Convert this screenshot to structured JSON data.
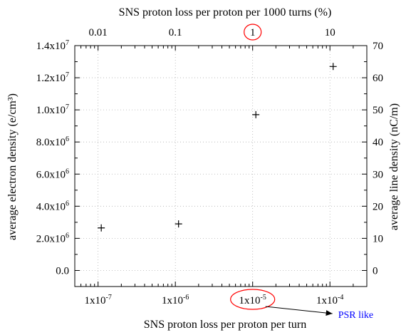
{
  "chart_data": {
    "type": "scatter",
    "title": "",
    "xlabel": "SNS proton loss per proton per turn",
    "xlabel_top": "SNS proton loss per proton per 1000 turns (%)",
    "ylabel_left": "average electron density  (e/cm³)",
    "ylabel_right": "average  line density (nC/m)",
    "x_scale": "log",
    "xlim": [
      5e-08,
      0.0003
    ],
    "ylim": [
      -1000000,
      14000000
    ],
    "ylim_right": [
      -5,
      70
    ],
    "grid": true,
    "x_ticks": [
      {
        "value": 1e-07,
        "mantissa": "1x10",
        "exponent": "-7"
      },
      {
        "value": 1e-06,
        "mantissa": "1x10",
        "exponent": "-6"
      },
      {
        "value": 1e-05,
        "mantissa": "1x10",
        "exponent": "-5"
      },
      {
        "value": 0.0001,
        "mantissa": "1x10",
        "exponent": "-4"
      }
    ],
    "x_ticks_top": [
      {
        "value": 1e-07,
        "label": "0.01"
      },
      {
        "value": 1e-06,
        "label": "0.1"
      },
      {
        "value": 1e-05,
        "label": "1"
      },
      {
        "value": 0.0001,
        "label": "10"
      }
    ],
    "y_ticks": [
      {
        "value": 0,
        "mantissa": "0.0",
        "exponent": ""
      },
      {
        "value": 2000000,
        "mantissa": "2.0x10",
        "exponent": "6"
      },
      {
        "value": 4000000,
        "mantissa": "4.0x10",
        "exponent": "6"
      },
      {
        "value": 6000000,
        "mantissa": "6.0x10",
        "exponent": "6"
      },
      {
        "value": 8000000,
        "mantissa": "8.0x10",
        "exponent": "6"
      },
      {
        "value": 10000000,
        "mantissa": "1.0x10",
        "exponent": "7"
      },
      {
        "value": 12000000,
        "mantissa": "1.2x10",
        "exponent": "7"
      },
      {
        "value": 14000000,
        "mantissa": "1.4x10",
        "exponent": "7"
      }
    ],
    "y_ticks_right": [
      {
        "value": 0,
        "label": "0"
      },
      {
        "value": 10,
        "label": "10"
      },
      {
        "value": 20,
        "label": "20"
      },
      {
        "value": 30,
        "label": "30"
      },
      {
        "value": 40,
        "label": "40"
      },
      {
        "value": 50,
        "label": "50"
      },
      {
        "value": 60,
        "label": "60"
      },
      {
        "value": 70,
        "label": "70"
      }
    ],
    "points": [
      {
        "x": 1.1e-07,
        "y": 2650000
      },
      {
        "x": 1.1e-06,
        "y": 2900000
      },
      {
        "x": 1.1e-05,
        "y": 9700000
      },
      {
        "x": 0.00011,
        "y": 12700000
      }
    ],
    "annotations": [
      {
        "text": "PSR like",
        "color": "#0000ff",
        "highlights_x": 1e-05
      }
    ],
    "highlight_color": "#ff0000",
    "axis_color": "#000000",
    "grid_color": "#b0b0b0",
    "marker": "plus"
  }
}
